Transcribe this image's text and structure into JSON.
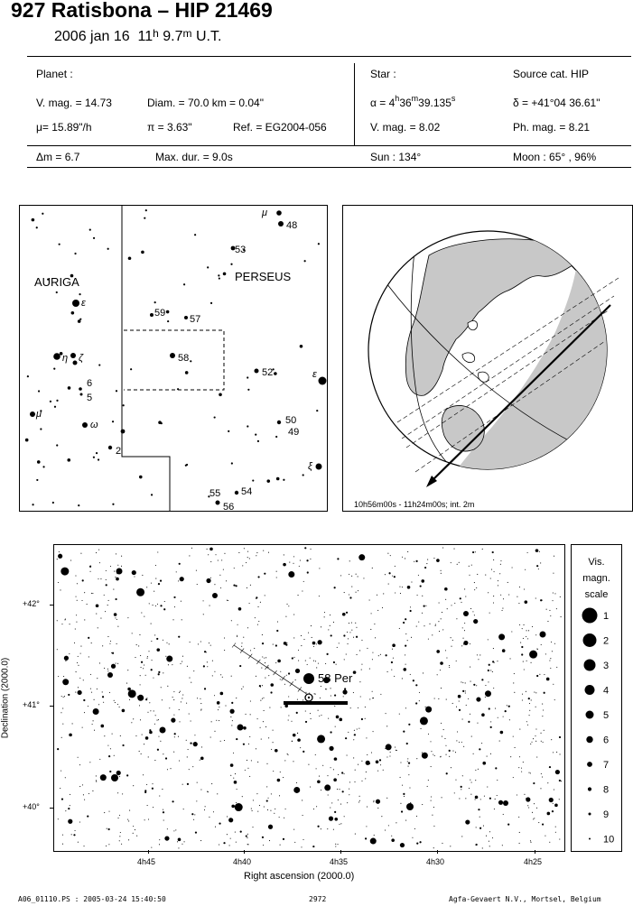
{
  "header": {
    "title": "927 Ratisbona  –  HIP 21469",
    "date": "2006 jan 16",
    "hour": "11",
    "hour_unit": "h",
    "minute": " 9.7",
    "minute_unit": "m",
    "timescale": " U.T."
  },
  "planet": {
    "heading": "Planet :",
    "vmag": "V. mag. = 14.73",
    "diam": "Diam. = 70.0 km = 0.04\"",
    "mu": "μ=  15.89\"/h",
    "pi": "π =  3.63\"",
    "ref": "Ref. = EG2004-056"
  },
  "star": {
    "heading": "Star :",
    "source": "Source cat.  HIP",
    "alpha_prefix": "α = 4",
    "alpha_h": "h",
    "alpha_min": "36",
    "alpha_m": "m",
    "alpha_sec": "39.135",
    "alpha_s": "s",
    "delta": "δ = +41°04 36.61\"",
    "vmag": "V. mag. =  8.02",
    "phmag": "Ph. mag. =  8.21"
  },
  "summary": {
    "dm": "Δm = 6.7",
    "maxdur": "Max. dur. = 9.0s",
    "sun": "Sun : 134°",
    "moon": "Moon :  65° ,  96%"
  },
  "overview_map": {
    "const_auriga": "AURIGA",
    "const_perseus": "PERSEUS",
    "labels": {
      "mu_top": "μ",
      "s48": "48",
      "s53": "53",
      "s59": "59",
      "s57": "57",
      "s58": "58",
      "s52": "52",
      "eps_right": "ε",
      "s50": "50",
      "s49": "49",
      "xi": "ξ",
      "s55": "55",
      "s54": "54",
      "s56": "56",
      "eps_left": "ε",
      "eta": "η",
      "zeta": "ζ",
      "s6": "6",
      "s5": "5",
      "mu_left": "μ",
      "omega": "ω",
      "s2": "2"
    }
  },
  "globe": {
    "caption": "10h56m00s - 11h24m00s; int.  2m"
  },
  "detail_chart": {
    "star_label": "58 Per",
    "ylabel": "Declination (2000.0)",
    "xlabel": "Right ascension (2000.0)",
    "yticks": [
      "+42°",
      "+41°",
      "+40°"
    ],
    "xticks": [
      "4h45",
      "4h40",
      "4h35",
      "4h30",
      "4h25"
    ]
  },
  "mag_scale": {
    "title1": "Vis.",
    "title2": "magn.",
    "title3": "scale",
    "items": [
      "1",
      "2",
      "3",
      "4",
      "5",
      "6",
      "7",
      "8",
      "9",
      "10"
    ]
  },
  "footer": {
    "file": "A06_01110.PS : 2005-03-24 15:40:50",
    "page": "2972",
    "company": "Agfa-Gevaert N.V., Mortsel, Belgium"
  }
}
